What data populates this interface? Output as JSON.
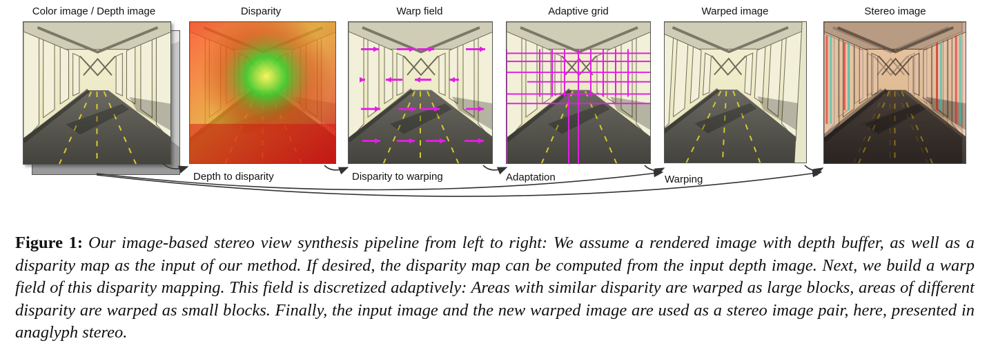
{
  "panels": [
    {
      "id": "color",
      "title": "Color image / Depth image"
    },
    {
      "id": "disparity",
      "title": "Disparity"
    },
    {
      "id": "warp",
      "title": "Warp field"
    },
    {
      "id": "grid",
      "title": "Adaptive grid"
    },
    {
      "id": "warped",
      "title": "Warped image"
    },
    {
      "id": "stereo",
      "title": "Stereo image"
    }
  ],
  "steps": {
    "depth_to_disparity": "Depth to disparity",
    "disparity_to_warping": "Disparity to warping",
    "adaptation": "Adaptation",
    "warping": "Warping"
  },
  "caption": {
    "label": "Figure 1:",
    "text": "Our image-based stereo view synthesis pipeline from left to right: We assume a rendered image with depth buffer, as well as a disparity map as the input of our method. If desired, the disparity map can be computed from the input depth image. Next, we build a warp field of this disparity mapping. This field is discretized adaptively: Areas with similar disparity are warped as large blocks, areas of different disparity are warped as small blocks. Finally, the input image and the new warped image are used as a stereo image pair, here, presented in anaglyph stereo."
  },
  "colors": {
    "warp_arrow": "#e21ee2",
    "grid_line": "#e21ee2",
    "disparity_near": "#e01010",
    "disparity_far": "#20c020"
  }
}
